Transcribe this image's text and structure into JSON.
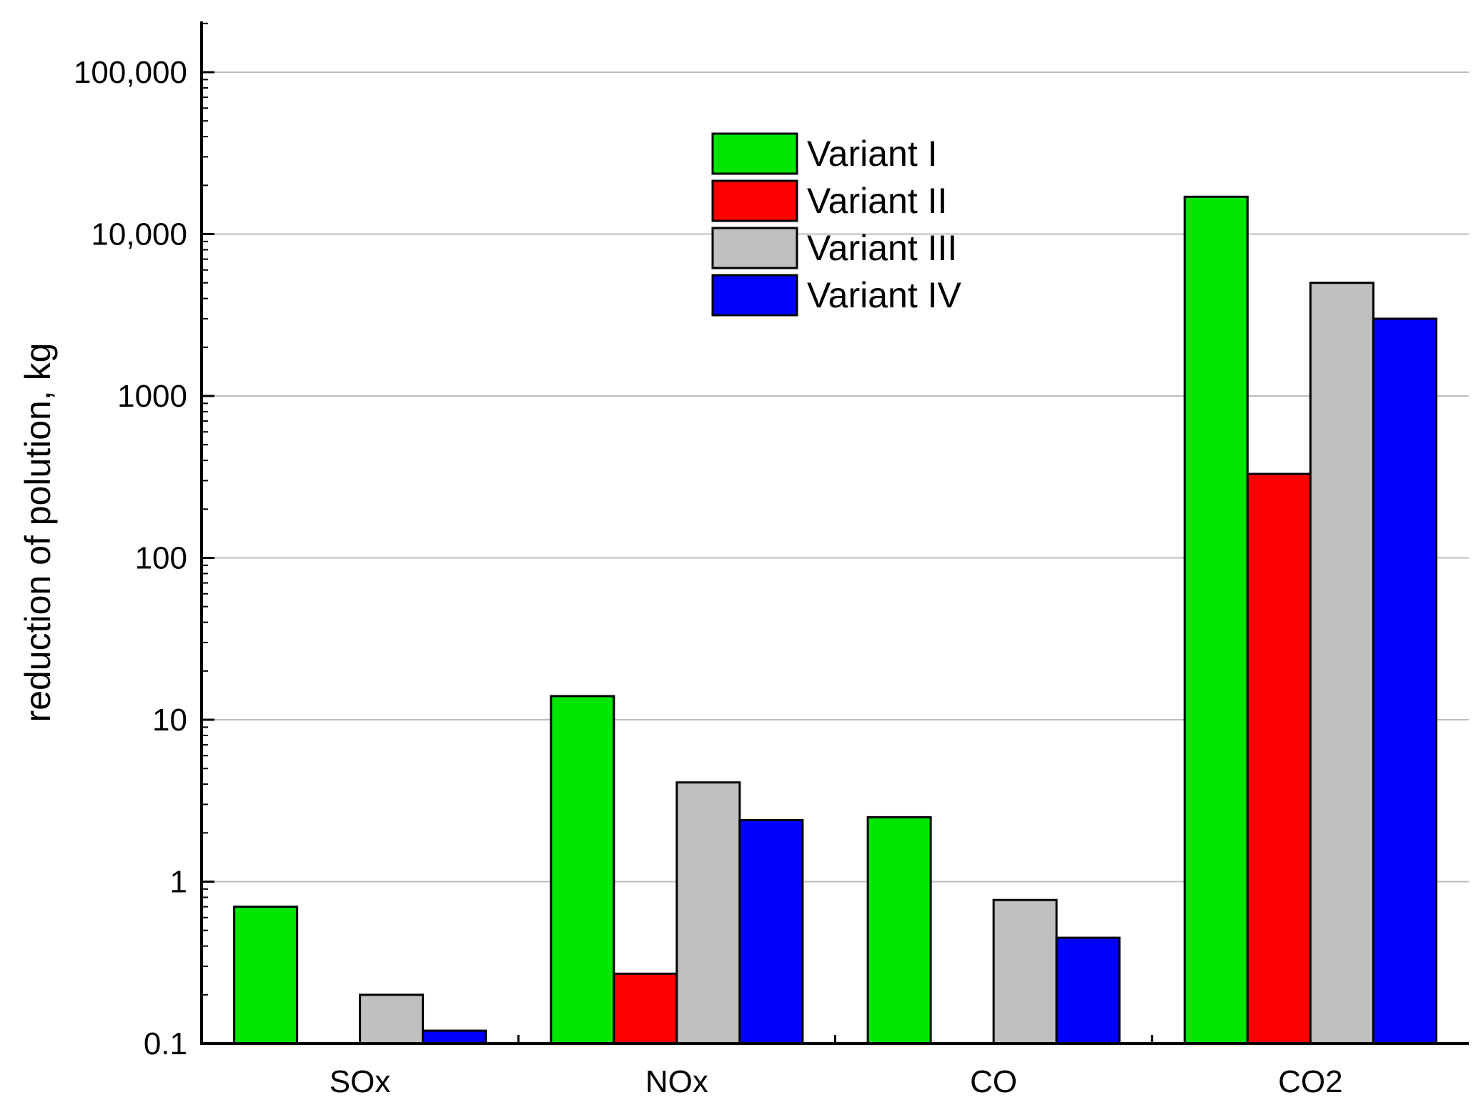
{
  "chart_data": {
    "type": "bar",
    "title": "",
    "xlabel": "",
    "ylabel": "reduction of polution, kg",
    "yscale": "log",
    "ylim": [
      0.1,
      200000
    ],
    "yticks": [
      "0.1",
      "1",
      "10",
      "100",
      "1000",
      "10,000",
      "100,000"
    ],
    "grid": "horizontal",
    "legend_position": "top-center",
    "categories": [
      "SOx",
      "NOx",
      "CO",
      "CO2"
    ],
    "series": [
      {
        "name": "Variant I",
        "color": "#00e600",
        "values": [
          0.7,
          14,
          2.5,
          17000
        ]
      },
      {
        "name": "Variant II",
        "color": "#ff0000",
        "values": [
          null,
          0.27,
          null,
          330
        ]
      },
      {
        "name": "Variant III",
        "color": "#c0c0c0",
        "values": [
          0.2,
          4.1,
          0.77,
          5000
        ]
      },
      {
        "name": "Variant IV",
        "color": "#0000ff",
        "values": [
          0.12,
          2.4,
          0.45,
          3000
        ]
      }
    ]
  }
}
